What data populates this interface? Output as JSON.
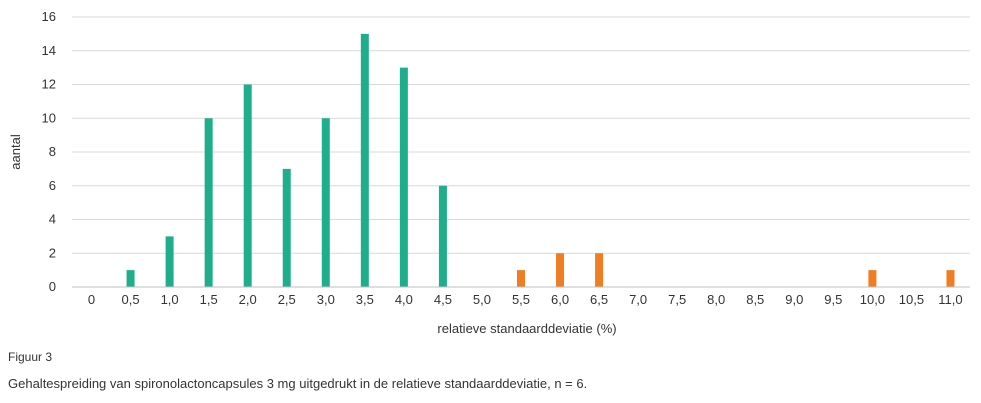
{
  "figure": {
    "label": "Figuur 3",
    "caption": "Gehaltespreiding van spironolactoncapsules 3 mg uitgedrukt in de relatieve standaarddeviatie, n = 6."
  },
  "chart_data": {
    "type": "bar",
    "title": "",
    "xlabel": "relatieve standaarddeviatie (%)",
    "ylabel": "aantal",
    "ylim": [
      0,
      16
    ],
    "yticks": [
      "0",
      "2",
      "4",
      "6",
      "8",
      "10",
      "12",
      "14",
      "16"
    ],
    "grid": true,
    "legend": "none",
    "categories": [
      "0",
      "0,5",
      "1,0",
      "1,5",
      "2,0",
      "2,5",
      "3,0",
      "3,5",
      "4,0",
      "4,5",
      "5,0",
      "5,5",
      "6,0",
      "6,5",
      "7,0",
      "7,5",
      "8,0",
      "8,5",
      "9,0",
      "9,5",
      "10,0",
      "10,5",
      "11,0"
    ],
    "series": [
      {
        "color": "#1fae8c",
        "values": [
          0,
          1,
          3,
          10,
          12,
          7,
          10,
          15,
          13,
          6,
          0,
          0,
          0,
          0,
          0,
          0,
          0,
          0,
          0,
          0,
          0,
          0,
          0
        ]
      },
      {
        "color": "#f07d22",
        "values": [
          0,
          0,
          0,
          0,
          0,
          0,
          0,
          0,
          0,
          0,
          0,
          1,
          2,
          2,
          0,
          0,
          0,
          0,
          0,
          0,
          1,
          0,
          1
        ]
      }
    ],
    "gridline_color": "#d9d9d9",
    "axis_color": "#bfbfbf"
  }
}
